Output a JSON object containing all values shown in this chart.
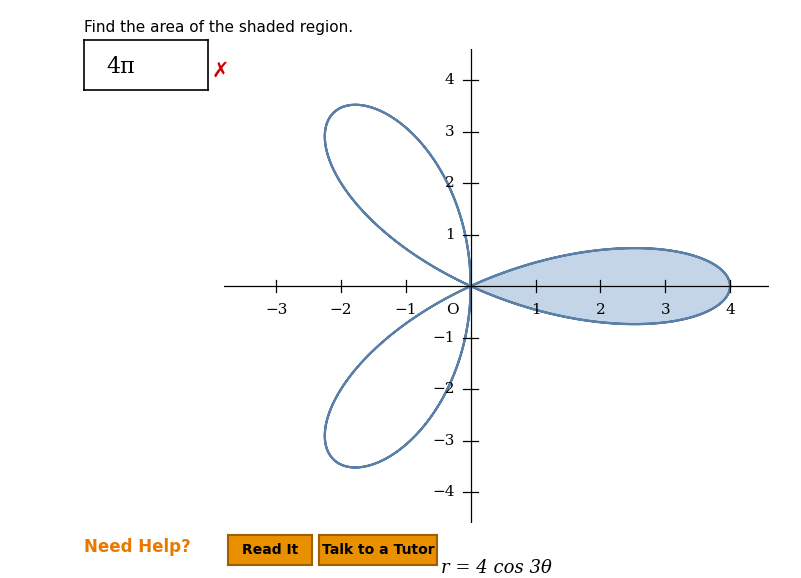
{
  "title": "Find the area of the shaded region.",
  "answer_text": "4π",
  "equation_label": "r = 4 cos 3θ",
  "curve_color": "#5b80a8",
  "shaded_color": "#c5d5e8",
  "curve_linewidth": 1.6,
  "xlim": [
    -3.8,
    4.6
  ],
  "ylim": [
    -4.6,
    4.6
  ],
  "xticks": [
    -3,
    -2,
    -1,
    1,
    2,
    3,
    4
  ],
  "yticks": [
    -4,
    -3,
    -2,
    -1,
    1,
    2,
    3,
    4
  ],
  "origin_label": "O",
  "background_color": "#ffffff",
  "x_mark_color": "#cc0000",
  "need_help_color": "#e87800",
  "button_color": "#e89000",
  "button_border_color": "#a06000",
  "button_text_color": "#000000",
  "axis_color": "#000000",
  "tick_fontsize": 11,
  "fig_width": 8.01,
  "fig_height": 5.78
}
